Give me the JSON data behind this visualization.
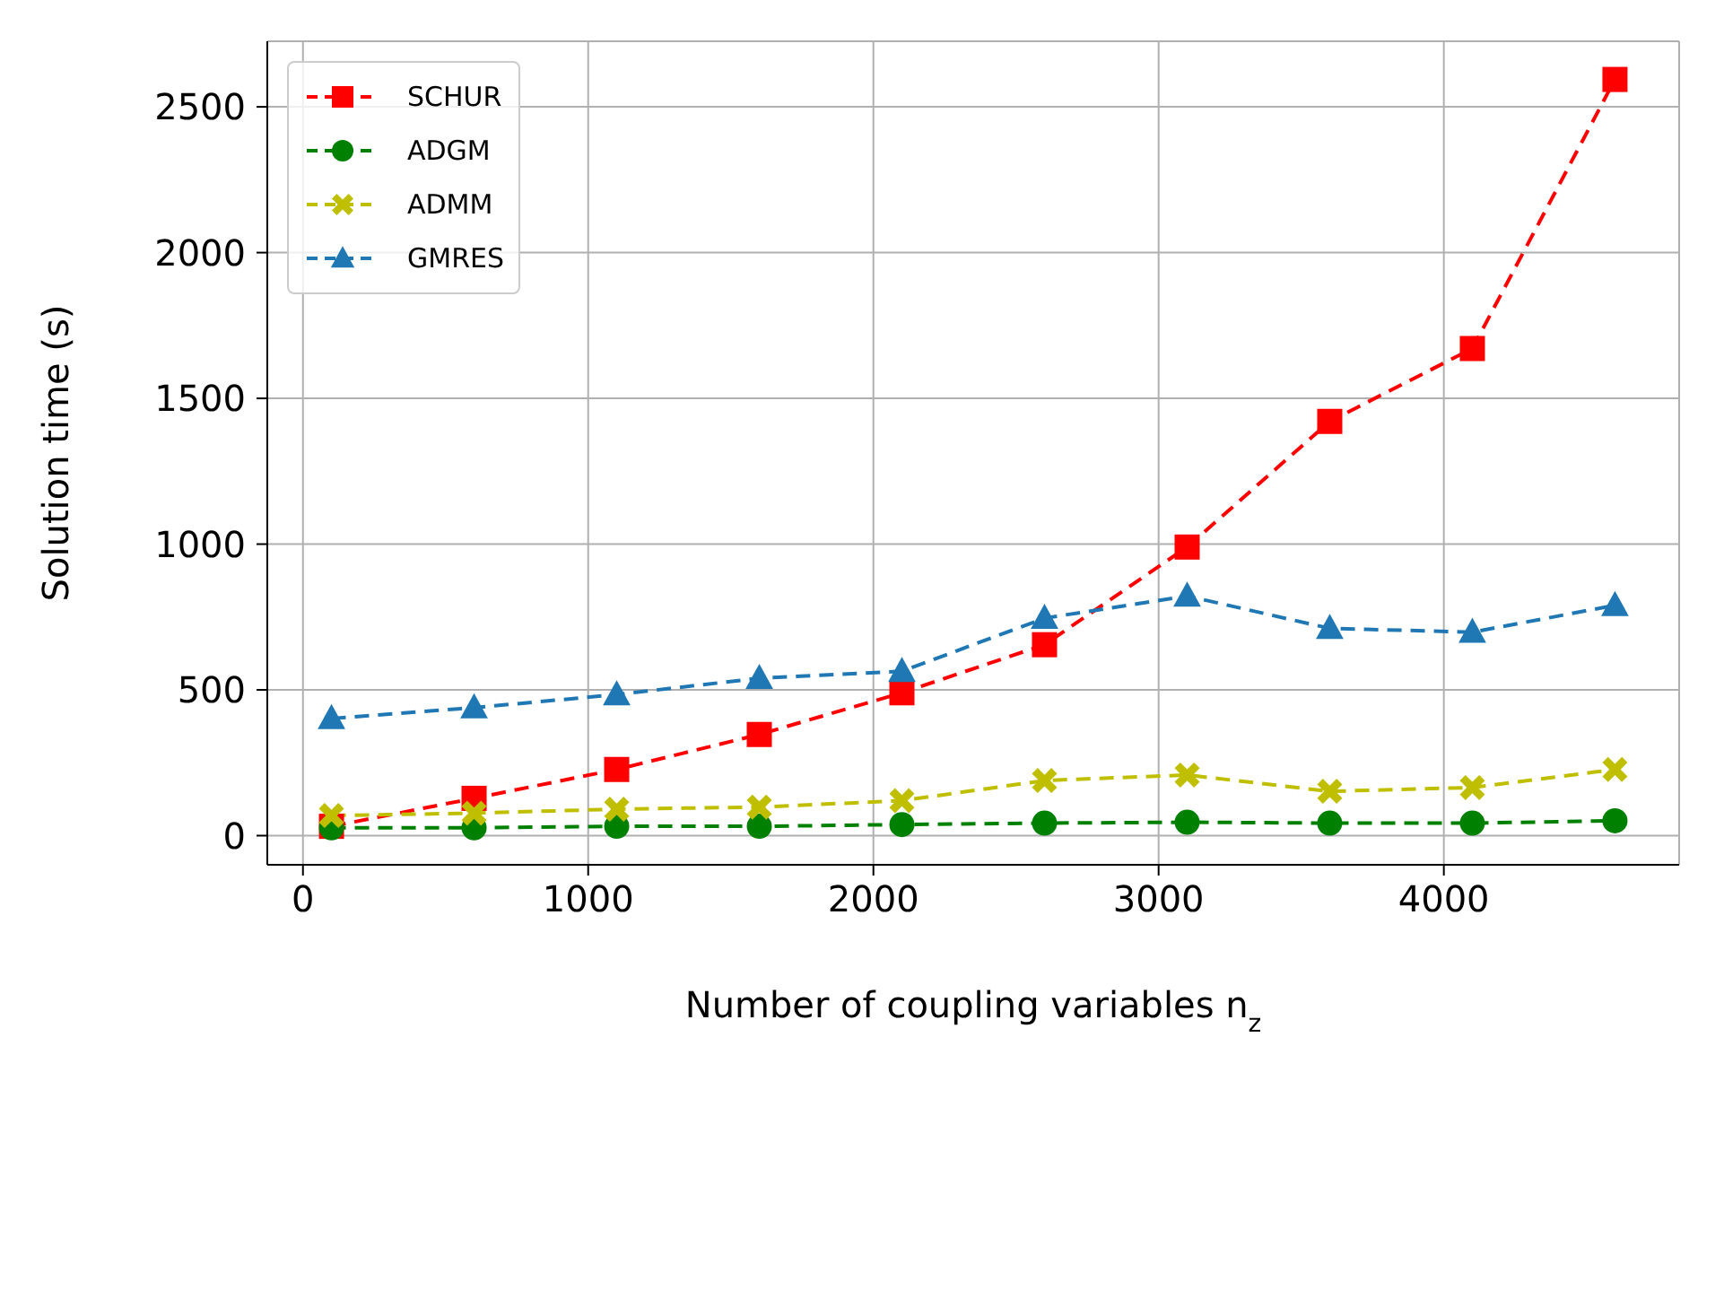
{
  "chart_data": {
    "type": "line",
    "xlabel": "Number of coupling variables n$_{z}$",
    "ylabel": "Solution time (s)",
    "x": [
      100,
      600,
      1100,
      1600,
      2100,
      2600,
      3100,
      3600,
      4100,
      4600
    ],
    "series": [
      {
        "name": "SCHUR",
        "color": "#ff0000",
        "marker": "square",
        "values": [
          32,
          128,
          227,
          347,
          490,
          655,
          990,
          1421,
          1671,
          2594
        ]
      },
      {
        "name": "ADGM",
        "color": "#008000",
        "marker": "circle",
        "values": [
          27,
          27,
          32,
          32,
          38,
          43,
          46,
          43,
          43,
          51
        ]
      },
      {
        "name": "ADMM",
        "color": "#bfbf00",
        "marker": "cross",
        "values": [
          69,
          77,
          91,
          98,
          120,
          189,
          208,
          152,
          165,
          227
        ]
      },
      {
        "name": "GMRES",
        "color": "#1f77b4",
        "marker": "triangle",
        "values": [
          402,
          439,
          484,
          540,
          564,
          746,
          822,
          711,
          698,
          790
        ]
      }
    ],
    "xlim": [
      -125,
      4825
    ],
    "xticks": [
      0,
      1000,
      2000,
      3000,
      4000
    ],
    "ylim": [
      -100,
      2725
    ],
    "yticks": [
      0,
      500,
      1000,
      1500,
      2000,
      2500
    ],
    "grid": true,
    "legend": "top left",
    "line_style": "dashed"
  }
}
